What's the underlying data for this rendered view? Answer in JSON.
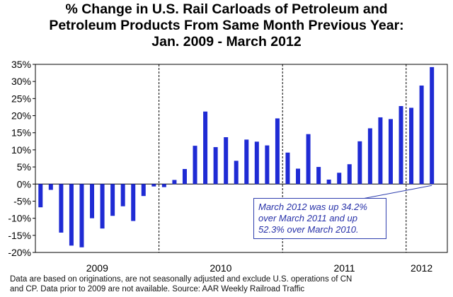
{
  "chart_data": {
    "type": "bar",
    "title_lines": [
      "% Change in U.S. Rail Carloads of Petroleum and",
      "Petroleum Products From Same Month Previous Year:",
      "Jan. 2009 - March 2012"
    ],
    "xlabel": "",
    "ylabel": "",
    "ylim": [
      -20,
      35
    ],
    "y_ticks": [
      35,
      30,
      25,
      20,
      15,
      10,
      5,
      0,
      -5,
      -10,
      -15,
      -20
    ],
    "y_tick_labels": [
      "35%",
      "30%",
      "25%",
      "20%",
      "15%",
      "10%",
      "5%",
      "0%",
      "-5%",
      "-10%",
      "-15%",
      "-20%"
    ],
    "year_labels": [
      "2009",
      "2010",
      "2011",
      "2012"
    ],
    "bar_color": "#1f2bd4",
    "grid": false,
    "series": [
      {
        "values": [
          -6.8,
          -1.7,
          -14.2,
          -18.0,
          -18.5,
          -10.0,
          -13.0,
          -9.3,
          -6.5,
          -10.8,
          -3.5,
          -0.7,
          -0.9,
          1.2,
          4.4,
          11.2,
          21.2,
          10.8,
          13.7,
          6.8,
          13.0,
          12.4,
          11.3,
          19.2,
          9.2,
          4.5,
          14.6,
          5.0,
          1.3,
          3.3,
          5.8,
          12.5,
          16.3,
          19.5,
          19.0,
          22.8,
          22.3,
          28.8,
          34.2
        ]
      }
    ],
    "annotation": "March 2012 was up 34.2% over March 2011 and up 52.3% over March 2010.",
    "footnote_lines": [
      "Data are based on originations, are not seasonally adjusted and exclude U.S. operations of CN",
      "and CP. Data prior to 2009 are not available. Source: AAR Weekly Railroad Traffic"
    ]
  }
}
